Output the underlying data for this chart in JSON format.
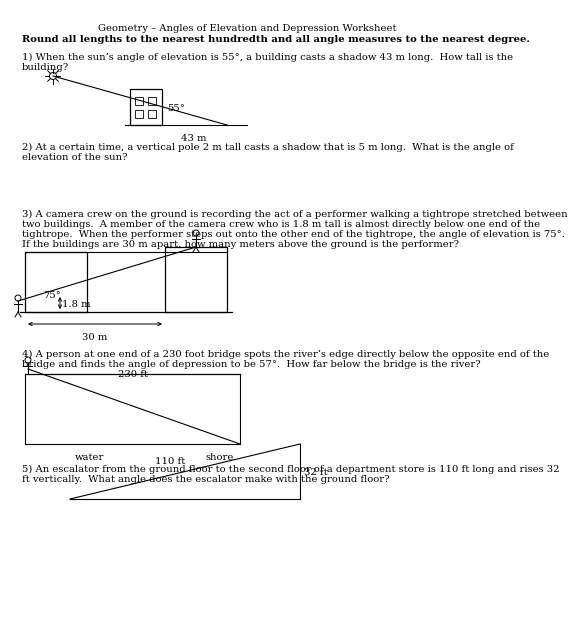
{
  "title": "Geometry – Angles of Elevation and Depression Worksheet",
  "bold_instruction": "Round all lengths to the nearest hundredth and all angle measures to the nearest degree.",
  "q1_line1": "1) When the sun’s angle of elevation is 55°, a building casts a shadow 43 m long.  How tall is the",
  "q1_line2": "building?",
  "q2_line1": "2) At a certain time, a vertical pole 2 m tall casts a shadow that is 5 m long.  What is the angle of",
  "q2_line2": "elevation of the sun?",
  "q3_line1": "3) A camera crew on the ground is recording the act of a performer walking a tightrope stretched between",
  "q3_line2": "two buildings.  A member of the camera crew who is 1.8 m tall is almost directly below one end of the",
  "q3_line3": "tightrope.  When the performer steps out onto the other end of the tightrope, the angle of elevation is 75°.",
  "q3_line4": "If the buildings are 30 m apart, how many meters above the ground is the performer?",
  "q4_line1": "4) A person at one end of a 230 foot bridge spots the river’s edge directly below the opposite end of the",
  "q4_line2": "bridge and finds the angle of depression to be 57°.  How far below the bridge is the river?",
  "q5_line1": "5) An escalator from the ground floor to the second floor of a department store is 110 ft long and rises 32",
  "q5_line2": "ft vertically.  What angle does the escalator make with the ground floor?",
  "bg_color": "#ffffff",
  "text_color": "#000000",
  "label_55": "55°",
  "label_43m": "43 m",
  "label_75": "75°",
  "label_18m": "1.8 m",
  "label_30m": "30 m",
  "label_230ft": "230 ft",
  "label_water": "water",
  "label_shore": "shore",
  "label_110ft": "110 ft",
  "label_32ft": "32 ft"
}
